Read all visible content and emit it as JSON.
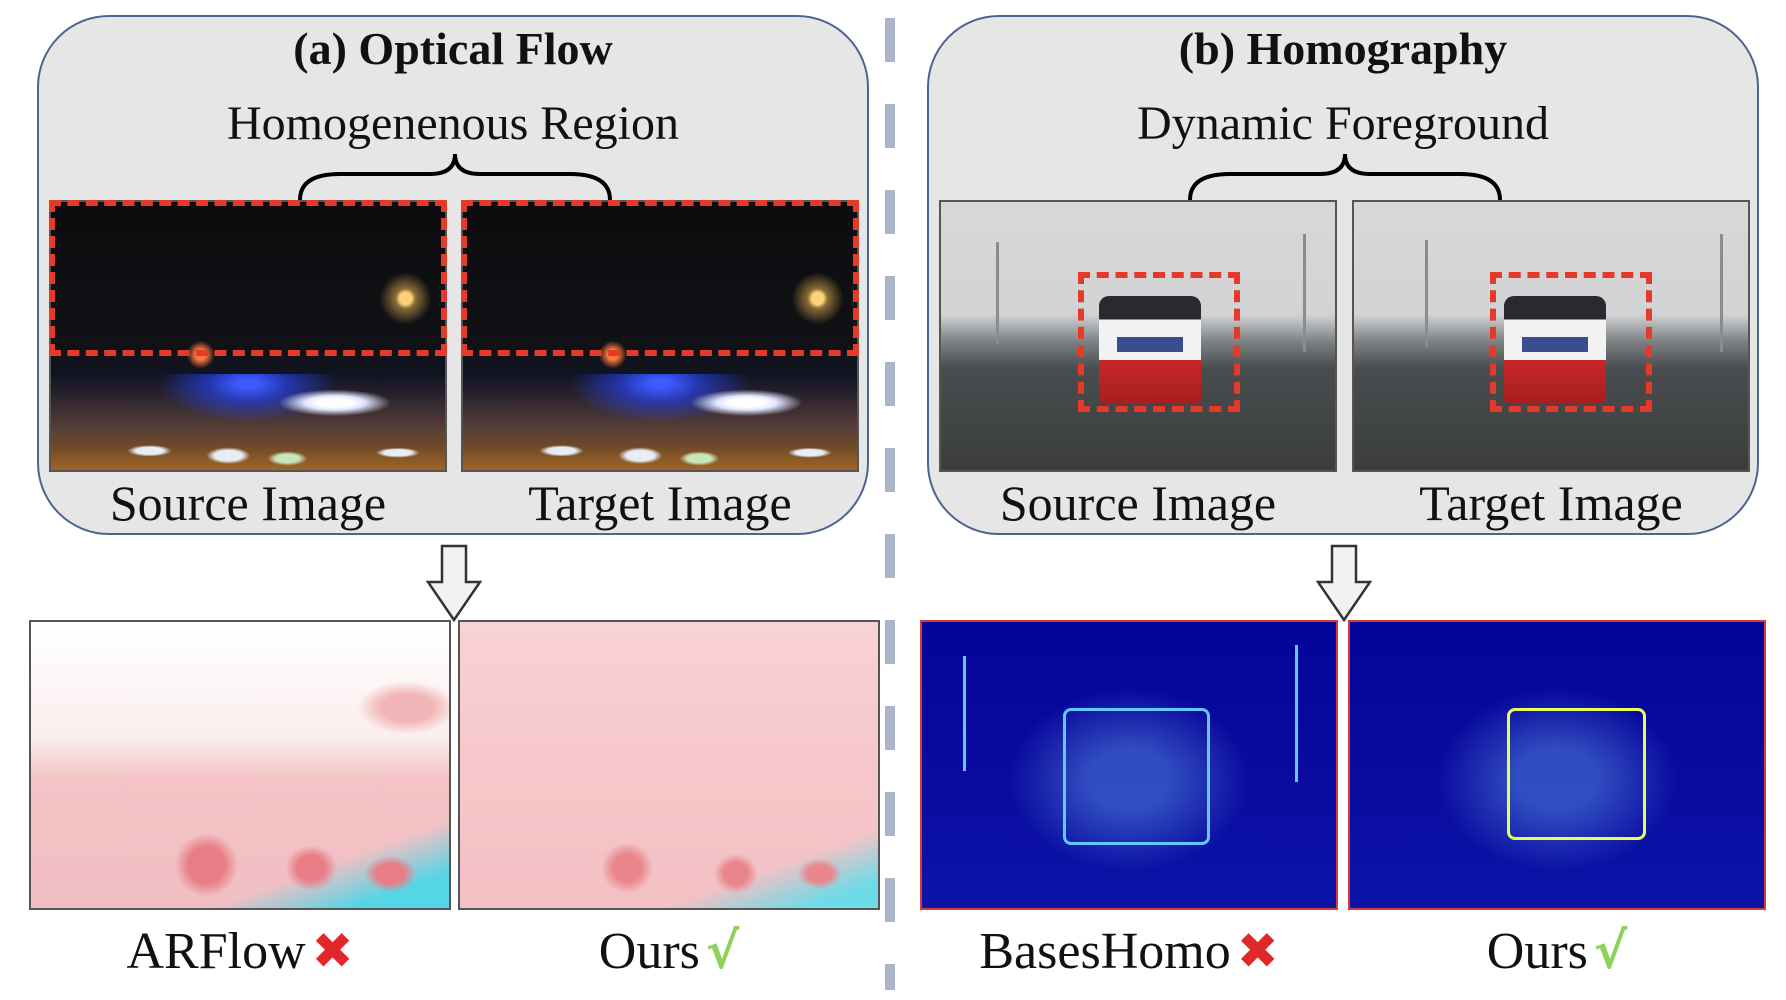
{
  "panels": [
    {
      "title": "(a) Optical Flow",
      "region_label": "Homogenenous Region",
      "source_label": "Source Image",
      "target_label": "Target Image",
      "results": [
        {
          "label": "ARFlow",
          "mark_icon": "cross-icon",
          "mark_color": "#e0272a"
        },
        {
          "label": "Ours",
          "mark_icon": "check-icon",
          "mark_color": "#8ed15b"
        }
      ]
    },
    {
      "title": "(b) Homography",
      "region_label": "Dynamic Foreground",
      "source_label": "Source Image",
      "target_label": "Target Image",
      "results": [
        {
          "label": "BasesHomo",
          "mark_icon": "cross-icon",
          "mark_color": "#e0272a"
        },
        {
          "label": "Ours",
          "mark_icon": "check-icon",
          "mark_color": "#8ed15b"
        }
      ]
    }
  ],
  "colors": {
    "panel_border": "#4d6390",
    "panel_fill": "#e6e6e6",
    "highlight_dash": "#e53a2a",
    "divider": "#aab4c8"
  }
}
